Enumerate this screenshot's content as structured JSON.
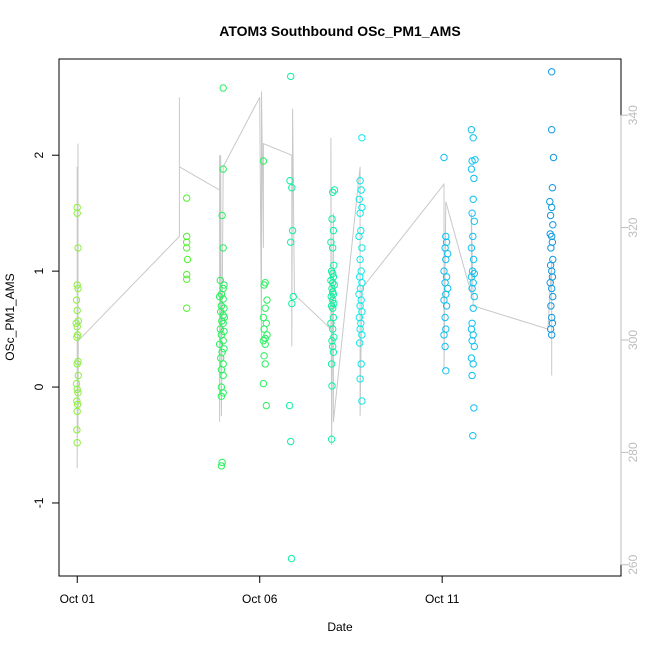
{
  "chart_data": {
    "type": "scatter",
    "title": "ATOM3 Southbound OSc_PM1_AMS",
    "xlabel": "Date",
    "ylabel": "OSc_PM1_AMS",
    "x_ticks": [
      "Oct 01",
      "Oct 06",
      "Oct 11"
    ],
    "x_tick_days": [
      1,
      6,
      11
    ],
    "xlim": [
      0.5,
      15.9
    ],
    "ylim": [
      -1.63,
      2.83
    ],
    "y_ticks": [
      -1,
      0,
      1,
      2
    ],
    "y2_ticks": [
      260,
      280,
      300,
      320,
      340
    ],
    "y2lim": [
      258,
      350
    ],
    "grid": false,
    "legend": "none",
    "colors": {
      "point_palette": [
        "#8cf040",
        "#55f030",
        "#2bf060",
        "#10f0a0",
        "#10e8e8",
        "#10c0f0",
        "#1098e0"
      ],
      "line": "#c8c8c8",
      "right_axis": "#bdbdbd",
      "axis": "#000000"
    },
    "series": [
      {
        "values": [
          [
            1.0,
            1.55
          ],
          [
            1.0,
            1.5
          ],
          [
            1.02,
            1.2
          ],
          [
            1.0,
            0.88
          ],
          [
            1.02,
            0.85
          ],
          [
            0.98,
            0.75
          ],
          [
            1.0,
            0.66
          ],
          [
            1.03,
            0.57
          ],
          [
            0.97,
            0.55
          ],
          [
            1.0,
            0.52
          ],
          [
            1.01,
            0.45
          ],
          [
            0.99,
            0.43
          ],
          [
            1.02,
            0.22
          ],
          [
            1.0,
            0.2
          ],
          [
            1.03,
            0.1
          ],
          [
            0.98,
            0.03
          ],
          [
            1.0,
            -0.02
          ],
          [
            1.02,
            -0.05
          ],
          [
            0.99,
            -0.12
          ],
          [
            1.01,
            -0.15
          ],
          [
            1.0,
            -0.21
          ],
          [
            0.99,
            -0.37
          ],
          [
            1.0,
            -0.48
          ]
        ]
      },
      {
        "values": [
          [
            4.0,
            1.63
          ],
          [
            4.0,
            1.3
          ],
          [
            4.0,
            1.25
          ],
          [
            4.0,
            1.2
          ],
          [
            4.02,
            1.1
          ],
          [
            4.0,
            0.97
          ],
          [
            4.0,
            0.93
          ],
          [
            4.0,
            0.68
          ]
        ]
      },
      {
        "values": [
          [
            5.0,
            2.58
          ],
          [
            5.0,
            1.88
          ],
          [
            4.97,
            1.48
          ],
          [
            5.0,
            1.2
          ],
          [
            4.92,
            0.92
          ],
          [
            5.02,
            0.88
          ],
          [
            5.0,
            0.85
          ],
          [
            4.95,
            0.8
          ],
          [
            4.9,
            0.78
          ],
          [
            5.0,
            0.76
          ],
          [
            4.95,
            0.7
          ],
          [
            5.02,
            0.68
          ],
          [
            4.93,
            0.65
          ],
          [
            5.0,
            0.62
          ],
          [
            5.03,
            0.6
          ],
          [
            4.96,
            0.57
          ],
          [
            5.0,
            0.55
          ],
          [
            4.92,
            0.5
          ],
          [
            5.02,
            0.48
          ],
          [
            4.95,
            0.45
          ],
          [
            5.0,
            0.4
          ],
          [
            4.9,
            0.37
          ],
          [
            5.02,
            0.33
          ],
          [
            4.97,
            0.3
          ],
          [
            4.93,
            0.25
          ],
          [
            5.0,
            0.2
          ],
          [
            4.95,
            0.15
          ],
          [
            5.0,
            0.1
          ],
          [
            4.95,
            0.0
          ],
          [
            5.0,
            -0.05
          ],
          [
            4.95,
            -0.08
          ],
          [
            4.97,
            -0.65
          ],
          [
            4.95,
            -0.68
          ]
        ]
      },
      {
        "values": [
          [
            6.1,
            1.95
          ],
          [
            6.15,
            0.9
          ],
          [
            6.12,
            0.88
          ],
          [
            6.2,
            0.75
          ],
          [
            6.15,
            0.68
          ],
          [
            6.1,
            0.6
          ],
          [
            6.18,
            0.55
          ],
          [
            6.12,
            0.5
          ],
          [
            6.2,
            0.45
          ],
          [
            6.15,
            0.42
          ],
          [
            6.1,
            0.4
          ],
          [
            6.15,
            0.37
          ],
          [
            6.12,
            0.27
          ],
          [
            6.15,
            0.2
          ],
          [
            6.1,
            0.03
          ],
          [
            6.18,
            -0.16
          ]
        ]
      },
      {
        "values": [
          [
            6.85,
            2.68
          ],
          [
            6.83,
            1.78
          ],
          [
            6.88,
            1.72
          ],
          [
            6.9,
            1.35
          ],
          [
            6.85,
            1.25
          ],
          [
            6.92,
            0.78
          ],
          [
            6.88,
            0.72
          ],
          [
            6.82,
            -0.16
          ],
          [
            6.85,
            -0.47
          ],
          [
            6.87,
            -1.48
          ]
        ]
      },
      {
        "values": [
          [
            8.0,
            1.68
          ],
          [
            8.05,
            1.7
          ],
          [
            7.98,
            1.45
          ],
          [
            8.02,
            1.35
          ],
          [
            7.95,
            1.25
          ],
          [
            8.0,
            1.2
          ],
          [
            8.03,
            1.05
          ],
          [
            7.97,
            1.0
          ],
          [
            8.0,
            0.98
          ],
          [
            8.02,
            0.95
          ],
          [
            7.95,
            0.92
          ],
          [
            8.0,
            0.9
          ],
          [
            8.04,
            0.88
          ],
          [
            7.98,
            0.85
          ],
          [
            8.0,
            0.82
          ],
          [
            8.02,
            0.8
          ],
          [
            7.96,
            0.78
          ],
          [
            8.0,
            0.75
          ],
          [
            8.03,
            0.72
          ],
          [
            7.97,
            0.7
          ],
          [
            8.0,
            0.68
          ],
          [
            8.02,
            0.6
          ],
          [
            7.95,
            0.55
          ],
          [
            8.0,
            0.5
          ],
          [
            8.03,
            0.43
          ],
          [
            7.98,
            0.4
          ],
          [
            8.0,
            0.35
          ],
          [
            8.02,
            0.3
          ],
          [
            7.97,
            0.2
          ],
          [
            7.98,
            0.01
          ],
          [
            7.97,
            -0.45
          ]
        ]
      },
      {
        "values": [
          [
            8.8,
            2.15
          ],
          [
            8.75,
            1.78
          ],
          [
            8.78,
            1.7
          ],
          [
            8.73,
            1.62
          ],
          [
            8.8,
            1.55
          ],
          [
            8.75,
            1.5
          ],
          [
            8.77,
            1.35
          ],
          [
            8.72,
            1.3
          ],
          [
            8.8,
            1.2
          ],
          [
            8.75,
            1.1
          ],
          [
            8.78,
            1.0
          ],
          [
            8.74,
            0.95
          ],
          [
            8.8,
            0.9
          ],
          [
            8.76,
            0.85
          ],
          [
            8.72,
            0.8
          ],
          [
            8.78,
            0.75
          ],
          [
            8.75,
            0.7
          ],
          [
            8.8,
            0.65
          ],
          [
            8.73,
            0.6
          ],
          [
            8.77,
            0.55
          ],
          [
            8.75,
            0.5
          ],
          [
            8.8,
            0.45
          ],
          [
            8.74,
            0.38
          ],
          [
            8.78,
            0.2
          ],
          [
            8.75,
            0.07
          ],
          [
            8.8,
            -0.12
          ]
        ]
      },
      {
        "values": [
          [
            11.05,
            1.98
          ],
          [
            11.1,
            1.3
          ],
          [
            11.12,
            1.25
          ],
          [
            11.08,
            1.2
          ],
          [
            11.15,
            1.15
          ],
          [
            11.1,
            1.1
          ],
          [
            11.05,
            1.0
          ],
          [
            11.12,
            0.95
          ],
          [
            11.08,
            0.9
          ],
          [
            11.15,
            0.85
          ],
          [
            11.1,
            0.8
          ],
          [
            11.05,
            0.75
          ],
          [
            11.12,
            0.7
          ],
          [
            11.08,
            0.6
          ],
          [
            11.1,
            0.5
          ],
          [
            11.05,
            0.45
          ],
          [
            11.08,
            0.35
          ],
          [
            11.1,
            0.14
          ]
        ]
      },
      {
        "values": [
          [
            11.8,
            2.22
          ],
          [
            11.85,
            2.15
          ],
          [
            11.9,
            1.96
          ],
          [
            11.82,
            1.95
          ],
          [
            11.8,
            1.88
          ],
          [
            11.87,
            1.8
          ],
          [
            11.85,
            1.62
          ],
          [
            11.82,
            1.5
          ],
          [
            11.88,
            1.43
          ],
          [
            11.84,
            1.3
          ],
          [
            11.8,
            1.2
          ],
          [
            11.86,
            1.1
          ],
          [
            11.83,
            1.0
          ],
          [
            11.88,
            0.98
          ],
          [
            11.8,
            0.95
          ],
          [
            11.85,
            0.9
          ],
          [
            11.82,
            0.85
          ],
          [
            11.88,
            0.78
          ],
          [
            11.85,
            0.68
          ],
          [
            11.82,
            0.55
          ],
          [
            11.8,
            0.5
          ],
          [
            11.85,
            0.45
          ],
          [
            11.82,
            0.4
          ],
          [
            11.88,
            0.35
          ],
          [
            11.8,
            0.25
          ],
          [
            11.85,
            0.2
          ],
          [
            11.82,
            0.1
          ],
          [
            11.87,
            -0.18
          ],
          [
            11.84,
            -0.42
          ]
        ]
      },
      {
        "values": [
          [
            14.0,
            2.72
          ],
          [
            14.0,
            2.22
          ],
          [
            14.05,
            1.98
          ],
          [
            14.02,
            1.72
          ],
          [
            13.95,
            1.6
          ],
          [
            14.0,
            1.55
          ],
          [
            13.97,
            1.48
          ],
          [
            14.03,
            1.4
          ],
          [
            13.96,
            1.32
          ],
          [
            14.0,
            1.3
          ],
          [
            14.02,
            1.25
          ],
          [
            13.98,
            1.2
          ],
          [
            14.03,
            1.1
          ],
          [
            13.97,
            1.05
          ],
          [
            14.0,
            1.0
          ],
          [
            14.02,
            0.95
          ],
          [
            13.96,
            0.9
          ],
          [
            14.0,
            0.85
          ],
          [
            14.03,
            0.78
          ],
          [
            13.98,
            0.7
          ],
          [
            14.0,
            0.6
          ],
          [
            14.02,
            0.55
          ],
          [
            13.97,
            0.5
          ],
          [
            14.0,
            0.45
          ]
        ]
      }
    ],
    "line_series": {
      "values": [
        [
          1.0,
          0.35
        ],
        [
          1.0,
          1.9
        ],
        [
          1.0,
          -0.7
        ],
        [
          1.02,
          2.1
        ],
        [
          1.02,
          -0.4
        ],
        [
          1.03,
          0.4
        ],
        [
          3.8,
          1.3
        ],
        [
          3.8,
          2.5
        ],
        [
          3.8,
          1.9
        ],
        [
          4.9,
          1.7
        ],
        [
          4.9,
          2.0
        ],
        [
          4.9,
          -0.3
        ],
        [
          4.93,
          2.0
        ],
        [
          4.95,
          -0.25
        ],
        [
          5.0,
          1.9
        ],
        [
          6.0,
          2.5
        ],
        [
          6.05,
          0.4
        ],
        [
          6.05,
          2.55
        ],
        [
          6.1,
          1.2
        ],
        [
          6.1,
          2.1
        ],
        [
          6.88,
          2.0
        ],
        [
          6.88,
          0.35
        ],
        [
          6.9,
          2.4
        ],
        [
          6.95,
          0.8
        ],
        [
          7.95,
          0.5
        ],
        [
          7.95,
          2.15
        ],
        [
          7.97,
          -0.5
        ],
        [
          7.99,
          0.3
        ],
        [
          8.02,
          1.5
        ],
        [
          8.02,
          -0.3
        ],
        [
          8.75,
          1.9
        ],
        [
          8.75,
          -0.25
        ],
        [
          8.8,
          0.85
        ],
        [
          11.05,
          1.75
        ],
        [
          11.05,
          0.15
        ],
        [
          11.1,
          1.6
        ],
        [
          11.8,
          0.8
        ],
        [
          11.8,
          1.5
        ],
        [
          11.85,
          0.7
        ],
        [
          13.9,
          0.5
        ],
        [
          14.0,
          1.1
        ],
        [
          14.0,
          0.1
        ]
      ]
    }
  }
}
